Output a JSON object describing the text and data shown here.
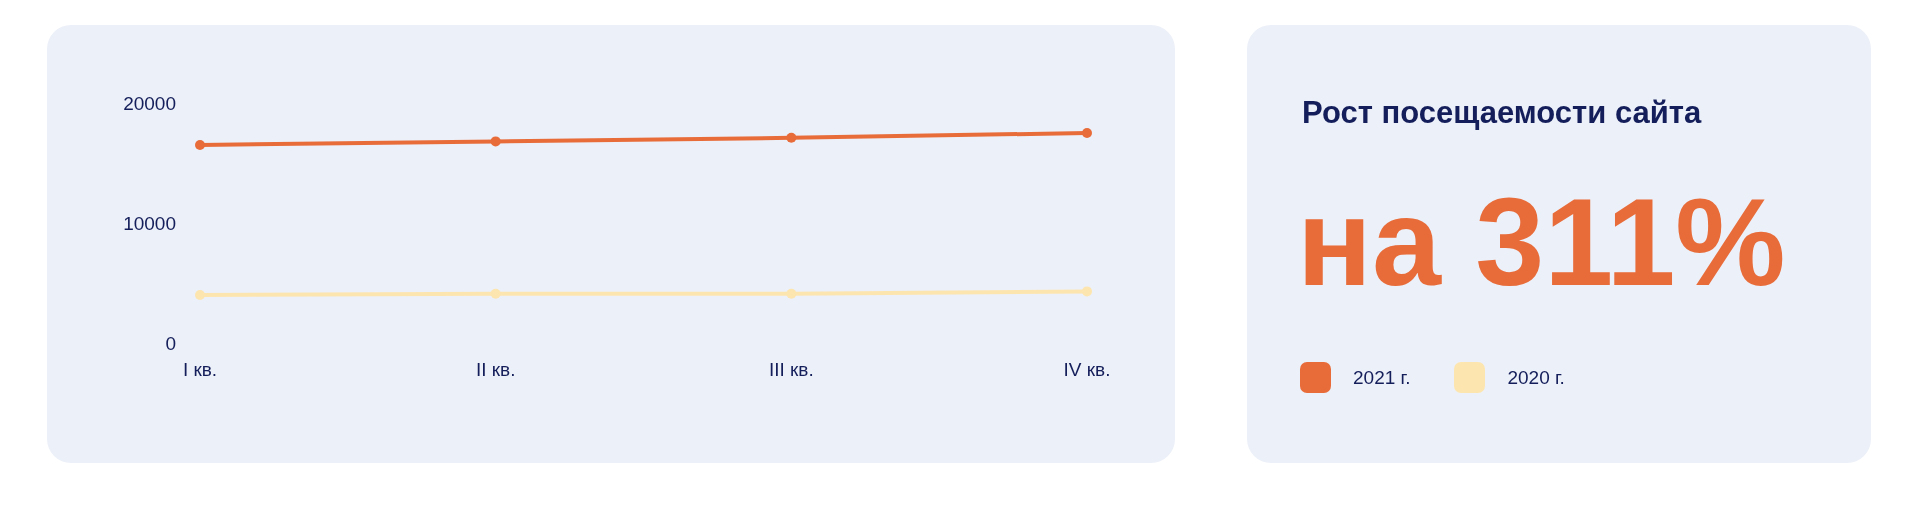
{
  "chart_data": {
    "type": "line",
    "title": "Рост посещаемости сайта",
    "annotations": [
      "на 311%"
    ],
    "categories": [
      "I кв.",
      "II кв.",
      "III кв.",
      "IV кв."
    ],
    "series": [
      {
        "name": "2021 г.",
        "color": "#e86c3a",
        "values": [
          16500,
          16800,
          17100,
          17500
        ]
      },
      {
        "name": "2020 г.",
        "color": "#fde5b0",
        "values": [
          4000,
          4100,
          4100,
          4300
        ]
      }
    ],
    "ylim": [
      0,
      20000
    ],
    "yticks": [
      0,
      10000,
      20000
    ],
    "grid": false,
    "legend": "right",
    "marker": "circle",
    "line_style": "solid"
  }
}
